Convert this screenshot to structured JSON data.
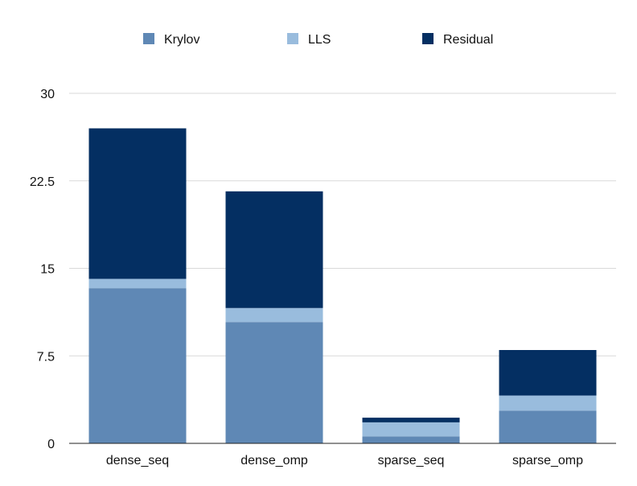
{
  "chart_data": {
    "type": "bar",
    "stacked": true,
    "categories": [
      "dense_seq",
      "dense_omp",
      "sparse_seq",
      "sparse_omp"
    ],
    "series": [
      {
        "name": "Krylov",
        "color": "#5f88b5",
        "values": [
          13.3,
          10.4,
          0.6,
          2.8
        ]
      },
      {
        "name": "LLS",
        "color": "#99bcdd",
        "values": [
          0.8,
          1.2,
          1.2,
          1.3
        ]
      },
      {
        "name": "Residual",
        "color": "#042f62",
        "values": [
          12.9,
          10.0,
          0.4,
          3.9
        ]
      }
    ],
    "ylim": [
      0,
      30
    ],
    "yticks": [
      0,
      7.5,
      15,
      22.5,
      30
    ],
    "ytick_labels": [
      "0",
      "7.5",
      "15",
      "22.5",
      "30"
    ],
    "legend_position": "top",
    "grid": true
  }
}
